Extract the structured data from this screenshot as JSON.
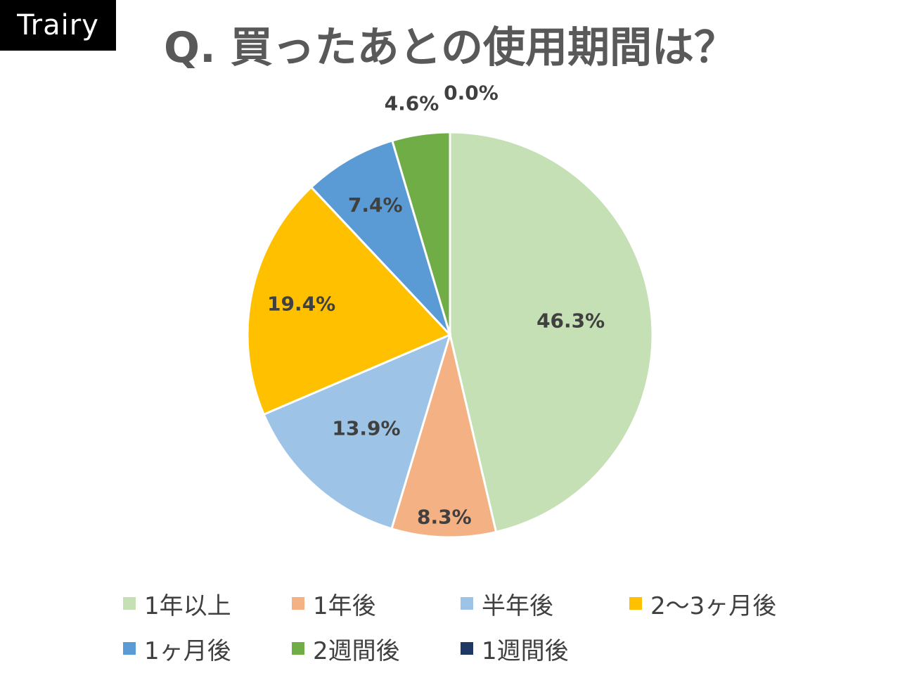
{
  "brand": {
    "name": "Trairy"
  },
  "chart_data": {
    "type": "pie",
    "title": "Q. 買ったあとの使用期間は？",
    "categories": [
      "1年以上",
      "1年後",
      "半年後",
      "2〜3ヶ月後",
      "1ヶ月後",
      "2週間後",
      "1週間後"
    ],
    "values": [
      46.3,
      8.3,
      13.9,
      19.4,
      7.4,
      4.6,
      0.0
    ],
    "data_labels": [
      "46.3%",
      "8.3%",
      "13.9%",
      "19.4%",
      "7.4%",
      "4.6%",
      "0.0%"
    ],
    "colors": [
      "#C5E0B4",
      "#F4B183",
      "#9DC3E6",
      "#FFC000",
      "#5B9BD5",
      "#70AD47",
      "#203864"
    ],
    "start_angle": "12 o'clock",
    "direction": "clockwise",
    "legend_position": "bottom"
  }
}
